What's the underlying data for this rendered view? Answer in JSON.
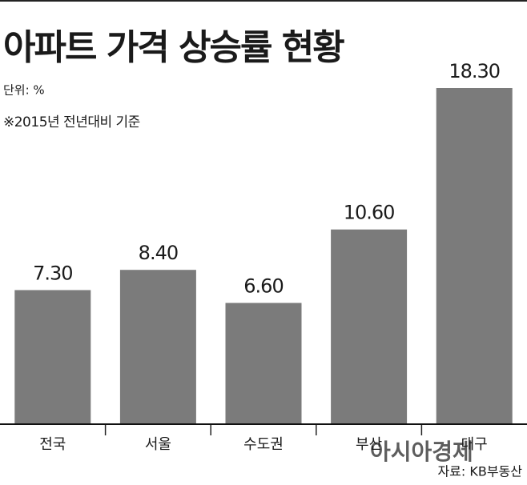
{
  "chart_data": {
    "type": "bar",
    "title": "아파트 가격 상승률 현황",
    "subtitle": "단위: %",
    "note": "※2015년 전년대비 기준",
    "source": "자료: KB부동산",
    "watermark": "아시아경제",
    "categories": [
      "전국",
      "서울",
      "수도권",
      "부산",
      "대구"
    ],
    "values": [
      7.3,
      8.4,
      6.6,
      10.6,
      18.3
    ],
    "value_labels": [
      "7.30",
      "8.40",
      "6.60",
      "10.60",
      "18.30"
    ],
    "color": "#7b7b7b"
  }
}
